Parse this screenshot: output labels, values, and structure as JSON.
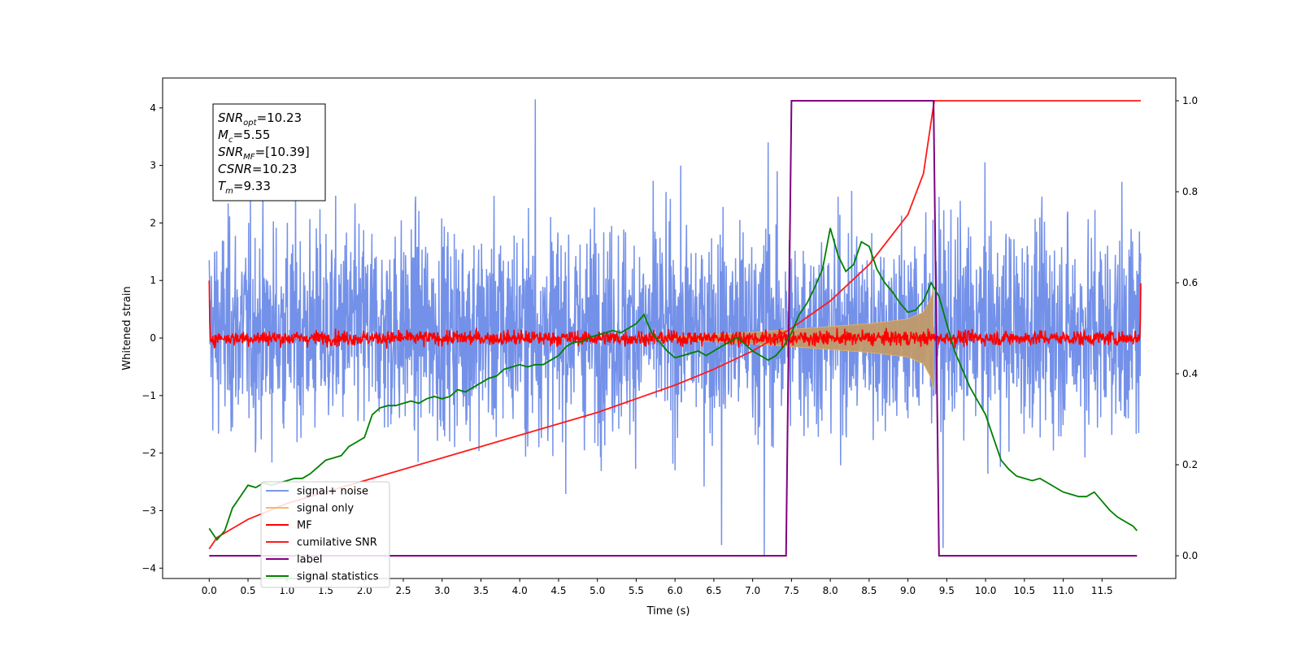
{
  "chart_data": {
    "type": "line",
    "title": "",
    "xlabel": "Time (s)",
    "ylabel": "Whitened strain",
    "xlim": [
      -0.6,
      12.45
    ],
    "ylim": [
      -4.18,
      4.52
    ],
    "ylim_right": [
      -0.05,
      1.05
    ],
    "x_ticks": [
      0.0,
      0.5,
      1.0,
      1.5,
      2.0,
      2.5,
      3.0,
      3.5,
      4.0,
      4.5,
      5.0,
      5.5,
      6.0,
      6.5,
      7.0,
      7.5,
      8.0,
      8.5,
      9.0,
      9.5,
      10.0,
      10.5,
      11.0,
      11.5
    ],
    "y_ticks_left": [
      -4,
      -3,
      -2,
      -1,
      0,
      1,
      2,
      3,
      4
    ],
    "y_ticks_right": [
      0.0,
      0.2,
      0.4,
      0.6,
      0.8,
      1.0
    ],
    "x_tick_labels": [
      "0.0",
      "0.5",
      "1.0",
      "1.5",
      "2.0",
      "2.5",
      "3.0",
      "3.5",
      "4.0",
      "4.5",
      "5.0",
      "5.5",
      "6.0",
      "6.5",
      "7.0",
      "7.5",
      "8.0",
      "8.5",
      "9.0",
      "9.5",
      "10.0",
      "10.5",
      "11.0",
      "11.5"
    ],
    "y_tick_labels_left": [
      "−4",
      "−3",
      "−2",
      "−1",
      "0",
      "1",
      "2",
      "3",
      "4"
    ],
    "y_tick_labels_right": [
      "0.0",
      "0.2",
      "0.4",
      "0.6",
      "0.8",
      "1.0"
    ],
    "grid": false,
    "legend_position": "lower-left",
    "colors": {
      "noise": "#6d8be8",
      "signal": "#f0b65a",
      "signal_fill": "#c19a6b",
      "mf": "#ff0000",
      "csnr": "#ff1a1a",
      "label": "#800080",
      "stats": "#008000"
    },
    "series": [
      {
        "name": "signal+ noise",
        "axis": "left",
        "x_range": [
          0.0,
          12.0
        ],
        "typical_amplitude": [
          -2.0,
          2.3
        ],
        "peak_values": [
          [
            4.2,
            4.15
          ],
          [
            7.2,
            3.4
          ],
          [
            7.15,
            -3.8
          ],
          [
            9.45,
            -3.65
          ],
          [
            6.6,
            -3.6
          ]
        ]
      },
      {
        "name": "signal only",
        "axis": "left",
        "x_range": [
          0.0,
          9.33
        ],
        "envelope": [
          [
            0.0,
            0.0
          ],
          [
            5.5,
            0.0
          ],
          [
            6.5,
            0.06
          ],
          [
            7.0,
            0.1
          ],
          [
            7.5,
            0.15
          ],
          [
            8.0,
            0.2
          ],
          [
            8.5,
            0.25
          ],
          [
            9.0,
            0.33
          ],
          [
            9.2,
            0.45
          ],
          [
            9.3,
            0.7
          ],
          [
            9.33,
            0.9
          ]
        ]
      },
      {
        "name": "MF",
        "axis": "left",
        "x_range": [
          0.0,
          12.0
        ],
        "start_value": 1.0,
        "end_value": 0.95,
        "typical_amplitude": [
          -0.15,
          0.2
        ]
      },
      {
        "name": "cumilative SNR",
        "axis": "right",
        "x": [
          0.0,
          0.1,
          0.3,
          0.5,
          1.0,
          1.5,
          2.0,
          2.5,
          3.0,
          3.5,
          4.0,
          4.5,
          5.0,
          5.5,
          6.0,
          6.5,
          7.0,
          7.5,
          8.0,
          8.5,
          9.0,
          9.2,
          9.33,
          9.34,
          12.0
        ],
        "values": [
          0.015,
          0.04,
          0.06,
          0.08,
          0.115,
          0.14,
          0.165,
          0.19,
          0.215,
          0.24,
          0.265,
          0.29,
          0.315,
          0.345,
          0.375,
          0.41,
          0.45,
          0.5,
          0.56,
          0.64,
          0.75,
          0.84,
          0.99,
          1.0,
          1.0
        ]
      },
      {
        "name": "label",
        "axis": "right",
        "x": [
          0.0,
          7.43,
          7.5,
          9.33,
          9.4,
          11.95
        ],
        "values": [
          0.0,
          0.0,
          1.0,
          1.0,
          0.0,
          0.0
        ]
      },
      {
        "name": "signal statistics",
        "axis": "right",
        "x": [
          0.0,
          0.1,
          0.2,
          0.3,
          0.4,
          0.5,
          0.6,
          0.7,
          0.8,
          0.9,
          1.0,
          1.1,
          1.2,
          1.3,
          1.4,
          1.5,
          1.6,
          1.7,
          1.8,
          1.9,
          2.0,
          2.1,
          2.2,
          2.3,
          2.4,
          2.5,
          2.6,
          2.7,
          2.8,
          2.9,
          3.0,
          3.1,
          3.2,
          3.3,
          3.4,
          3.5,
          3.6,
          3.7,
          3.8,
          3.9,
          4.0,
          4.1,
          4.2,
          4.3,
          4.4,
          4.5,
          4.6,
          4.7,
          4.8,
          4.9,
          5.0,
          5.1,
          5.2,
          5.3,
          5.4,
          5.5,
          5.6,
          5.7,
          5.8,
          5.9,
          6.0,
          6.1,
          6.2,
          6.3,
          6.4,
          6.5,
          6.6,
          6.7,
          6.8,
          6.9,
          7.0,
          7.1,
          7.2,
          7.3,
          7.4,
          7.5,
          7.6,
          7.7,
          7.8,
          7.9,
          8.0,
          8.1,
          8.2,
          8.3,
          8.4,
          8.5,
          8.6,
          8.7,
          8.8,
          8.9,
          9.0,
          9.1,
          9.2,
          9.3,
          9.4,
          9.5,
          9.6,
          9.7,
          9.8,
          9.9,
          10.0,
          10.1,
          10.2,
          10.3,
          10.4,
          10.5,
          10.6,
          10.7,
          10.8,
          10.9,
          11.0,
          11.1,
          11.2,
          11.3,
          11.4,
          11.5,
          11.6,
          11.7,
          11.8,
          11.9,
          11.95
        ],
        "values": [
          0.06,
          0.035,
          0.055,
          0.105,
          0.13,
          0.155,
          0.15,
          0.16,
          0.155,
          0.16,
          0.165,
          0.17,
          0.17,
          0.18,
          0.195,
          0.21,
          0.215,
          0.22,
          0.24,
          0.25,
          0.26,
          0.31,
          0.325,
          0.33,
          0.33,
          0.335,
          0.34,
          0.335,
          0.345,
          0.35,
          0.345,
          0.35,
          0.365,
          0.36,
          0.37,
          0.38,
          0.39,
          0.395,
          0.41,
          0.415,
          0.42,
          0.415,
          0.42,
          0.42,
          0.43,
          0.44,
          0.46,
          0.47,
          0.47,
          0.48,
          0.485,
          0.49,
          0.495,
          0.49,
          0.5,
          0.51,
          0.53,
          0.49,
          0.47,
          0.45,
          0.435,
          0.44,
          0.445,
          0.45,
          0.44,
          0.45,
          0.46,
          0.47,
          0.48,
          0.465,
          0.45,
          0.44,
          0.43,
          0.44,
          0.46,
          0.49,
          0.53,
          0.555,
          0.59,
          0.63,
          0.72,
          0.66,
          0.625,
          0.64,
          0.69,
          0.68,
          0.63,
          0.6,
          0.58,
          0.555,
          0.535,
          0.54,
          0.56,
          0.6,
          0.57,
          0.51,
          0.45,
          0.41,
          0.37,
          0.34,
          0.31,
          0.26,
          0.21,
          0.19,
          0.175,
          0.17,
          0.165,
          0.17,
          0.16,
          0.15,
          0.14,
          0.135,
          0.13,
          0.13,
          0.14,
          0.12,
          0.1,
          0.085,
          0.075,
          0.065,
          0.055
        ]
      }
    ],
    "annotation": {
      "lines": [
        {
          "name": "SNR",
          "sub": "opt",
          "value": "=10.23"
        },
        {
          "name": "M",
          "sub": "c",
          "value": "=5.55"
        },
        {
          "name": "SNR",
          "sub": "MF",
          "value": "=[10.39]"
        },
        {
          "name": "CSNR",
          "sub": "",
          "value": "=10.23"
        },
        {
          "name": "T",
          "sub": "m",
          "value": "=9.33"
        }
      ]
    }
  }
}
